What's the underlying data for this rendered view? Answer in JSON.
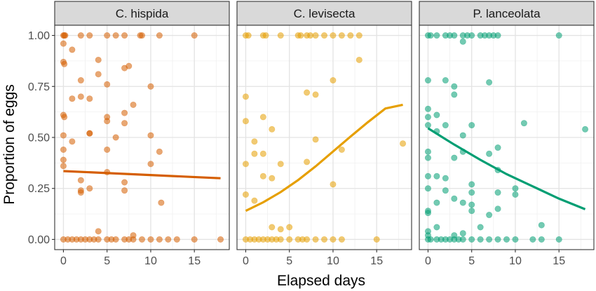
{
  "chart_data": {
    "type": "scatter",
    "xlabel": "Elapsed days",
    "ylabel": "Proportion of eggs",
    "xlim": [
      -1,
      19
    ],
    "ylim": [
      -0.05,
      1.05
    ],
    "x_ticks": [
      0,
      5,
      10,
      15
    ],
    "y_ticks": [
      0.0,
      0.25,
      0.5,
      0.75,
      1.0
    ],
    "x_tick_labels": [
      "0",
      "5",
      "10",
      "15"
    ],
    "y_tick_labels": [
      "0.00",
      "0.25",
      "0.50",
      "0.75",
      "1.00"
    ],
    "grid": true,
    "panels": [
      {
        "title": "C. hispida",
        "color": "#D55E00",
        "points": [
          [
            0,
            1
          ],
          [
            0.1,
            1
          ],
          [
            0.2,
            1
          ],
          [
            2,
            1
          ],
          [
            3,
            1
          ],
          [
            5,
            1
          ],
          [
            6,
            1
          ],
          [
            7,
            1
          ],
          [
            8.8,
            1
          ],
          [
            9,
            1
          ],
          [
            11,
            1
          ],
          [
            15,
            1
          ],
          [
            0,
            0.96
          ],
          [
            0,
            0.87
          ],
          [
            0.1,
            0.86
          ],
          [
            0,
            0.61
          ],
          [
            0.1,
            0.6
          ],
          [
            0,
            0.51
          ],
          [
            0,
            0.44
          ],
          [
            0,
            0.39
          ],
          [
            0,
            0.36
          ],
          [
            1,
            0.93
          ],
          [
            1,
            0.69
          ],
          [
            1,
            0.48
          ],
          [
            2,
            0.78
          ],
          [
            2,
            0.7
          ],
          [
            2,
            0.24
          ],
          [
            2,
            0.23
          ],
          [
            2,
            0.29
          ],
          [
            3,
            0.52
          ],
          [
            3,
            0.52
          ],
          [
            3,
            0.25
          ],
          [
            3,
            0.69
          ],
          [
            4,
            0.88
          ],
          [
            4,
            0.81
          ],
          [
            4,
            0.04
          ],
          [
            5,
            0.76
          ],
          [
            5,
            0.6
          ],
          [
            5,
            0.58
          ],
          [
            5,
            0.44
          ],
          [
            5,
            0.33
          ],
          [
            6,
            0.5
          ],
          [
            7,
            0.84
          ],
          [
            7,
            0.62
          ],
          [
            7,
            0.57
          ],
          [
            7,
            0.28
          ],
          [
            7,
            0.24
          ],
          [
            7.5,
            0.85
          ],
          [
            8,
            0.66
          ],
          [
            8,
            0.02
          ],
          [
            10,
            0.75
          ],
          [
            10,
            0.51
          ],
          [
            10,
            0.37
          ],
          [
            11,
            0.43
          ],
          [
            11.2,
            0.18
          ],
          [
            0,
            0
          ],
          [
            0.5,
            0
          ],
          [
            1,
            0
          ],
          [
            1.5,
            0
          ],
          [
            2,
            0
          ],
          [
            2.5,
            0
          ],
          [
            3,
            0
          ],
          [
            3.5,
            0
          ],
          [
            4,
            0
          ],
          [
            5,
            0
          ],
          [
            5.5,
            0
          ],
          [
            6,
            0
          ],
          [
            7,
            0
          ],
          [
            7.5,
            0
          ],
          [
            8,
            0
          ],
          [
            9,
            0
          ],
          [
            10,
            0
          ],
          [
            11,
            0
          ],
          [
            12,
            0
          ],
          [
            13,
            0
          ],
          [
            15,
            0
          ],
          [
            18,
            0
          ]
        ],
        "trend": {
          "x": [
            0,
            18
          ],
          "y": [
            0.335,
            0.3
          ]
        }
      },
      {
        "title": "C. levisecta",
        "color": "#E69F00",
        "points": [
          [
            0,
            1
          ],
          [
            0.3,
            1
          ],
          [
            2,
            1
          ],
          [
            2.3,
            1
          ],
          [
            4,
            1
          ],
          [
            6,
            1
          ],
          [
            6.3,
            1
          ],
          [
            7,
            1
          ],
          [
            7.4,
            1
          ],
          [
            8,
            1
          ],
          [
            9,
            1
          ],
          [
            10,
            1
          ],
          [
            11,
            1
          ],
          [
            12,
            1
          ],
          [
            13,
            1
          ],
          [
            13,
            0.88
          ],
          [
            0,
            0.7
          ],
          [
            0,
            0.58
          ],
          [
            0,
            0.37
          ],
          [
            0,
            0.22
          ],
          [
            1,
            0.48
          ],
          [
            1,
            0.42
          ],
          [
            1,
            0.19
          ],
          [
            2,
            0.6
          ],
          [
            2,
            0.42
          ],
          [
            2,
            0.31
          ],
          [
            3,
            0.54
          ],
          [
            3,
            0.3
          ],
          [
            3,
            0.06
          ],
          [
            4,
            0.37
          ],
          [
            4,
            0.05
          ],
          [
            5,
            0.06
          ],
          [
            7,
            0.72
          ],
          [
            7,
            0.38
          ],
          [
            8,
            0.71
          ],
          [
            8,
            0.49
          ],
          [
            10,
            0.78
          ],
          [
            10,
            0.27
          ],
          [
            11,
            0.44
          ],
          [
            18,
            0.47
          ],
          [
            0,
            0
          ],
          [
            0.5,
            0
          ],
          [
            1,
            0
          ],
          [
            1.5,
            0
          ],
          [
            2,
            0
          ],
          [
            2.5,
            0
          ],
          [
            3,
            0
          ],
          [
            3.5,
            0
          ],
          [
            4,
            0
          ],
          [
            5,
            0
          ],
          [
            6,
            0
          ],
          [
            6.5,
            0
          ],
          [
            7,
            0
          ],
          [
            8,
            0
          ],
          [
            9,
            0
          ],
          [
            10,
            0
          ],
          [
            11,
            0
          ],
          [
            15,
            0
          ]
        ],
        "trend": {
          "x": [
            0,
            2,
            4,
            6,
            8,
            10,
            12,
            14,
            16,
            18
          ],
          "y": [
            0.14,
            0.182,
            0.232,
            0.291,
            0.358,
            0.431,
            0.504,
            0.575,
            0.642,
            0.66
          ]
        }
      },
      {
        "title": "P. lanceolata",
        "color": "#009E73",
        "points": [
          [
            0,
            1
          ],
          [
            0.3,
            1
          ],
          [
            1,
            1
          ],
          [
            2,
            1
          ],
          [
            2.5,
            1
          ],
          [
            3,
            1
          ],
          [
            4,
            1
          ],
          [
            4.5,
            1
          ],
          [
            5,
            1
          ],
          [
            6,
            1
          ],
          [
            6.5,
            1
          ],
          [
            7,
            1
          ],
          [
            7.5,
            1
          ],
          [
            8,
            1
          ],
          [
            15,
            1
          ],
          [
            4,
            0.97
          ],
          [
            0,
            0.78
          ],
          [
            0,
            0.64
          ],
          [
            0,
            0.6
          ],
          [
            0,
            0.56
          ],
          [
            0,
            0.43
          ],
          [
            0,
            0.4
          ],
          [
            0,
            0.31
          ],
          [
            0,
            0.25
          ],
          [
            0,
            0.14
          ],
          [
            0,
            0.13
          ],
          [
            0,
            0.04
          ],
          [
            0,
            0.02
          ],
          [
            1,
            0.61
          ],
          [
            1,
            0.53
          ],
          [
            1,
            0.31
          ],
          [
            1,
            0.18
          ],
          [
            1,
            0.06
          ],
          [
            2,
            0.78
          ],
          [
            2,
            0.56
          ],
          [
            2,
            0.3
          ],
          [
            2,
            0.24
          ],
          [
            3,
            0.75
          ],
          [
            3,
            0.71
          ],
          [
            3,
            0.4
          ],
          [
            3,
            0.2
          ],
          [
            3,
            0.02
          ],
          [
            4,
            0.51
          ],
          [
            4,
            0.43
          ],
          [
            4,
            0.18
          ],
          [
            4,
            0.03
          ],
          [
            5,
            0.56
          ],
          [
            5,
            0.27
          ],
          [
            5,
            0.23
          ],
          [
            5,
            0.17
          ],
          [
            5,
            0.14
          ],
          [
            6,
            0.06
          ],
          [
            7,
            0.77
          ],
          [
            7,
            0.42
          ],
          [
            7,
            0.12
          ],
          [
            8,
            0.45
          ],
          [
            8,
            0.34
          ],
          [
            8,
            0.23
          ],
          [
            8,
            0.15
          ],
          [
            10,
            0.25
          ],
          [
            10,
            0.22
          ],
          [
            11,
            0.57
          ],
          [
            13,
            0.07
          ],
          [
            18,
            0.54
          ],
          [
            0,
            0
          ],
          [
            0.3,
            0
          ],
          [
            1,
            0
          ],
          [
            1.5,
            0
          ],
          [
            2,
            0
          ],
          [
            2.5,
            0
          ],
          [
            3,
            0
          ],
          [
            3.5,
            0
          ],
          [
            4,
            0
          ],
          [
            5,
            0
          ],
          [
            6,
            0
          ],
          [
            7,
            0
          ],
          [
            8,
            0
          ],
          [
            9,
            0
          ],
          [
            10,
            0
          ],
          [
            12,
            0
          ],
          [
            13,
            0
          ],
          [
            15,
            0
          ]
        ],
        "trend": {
          "x": [
            0,
            3,
            6,
            9,
            12,
            15,
            18
          ],
          "y": [
            0.545,
            0.465,
            0.39,
            0.32,
            0.26,
            0.2,
            0.148
          ]
        }
      }
    ]
  }
}
